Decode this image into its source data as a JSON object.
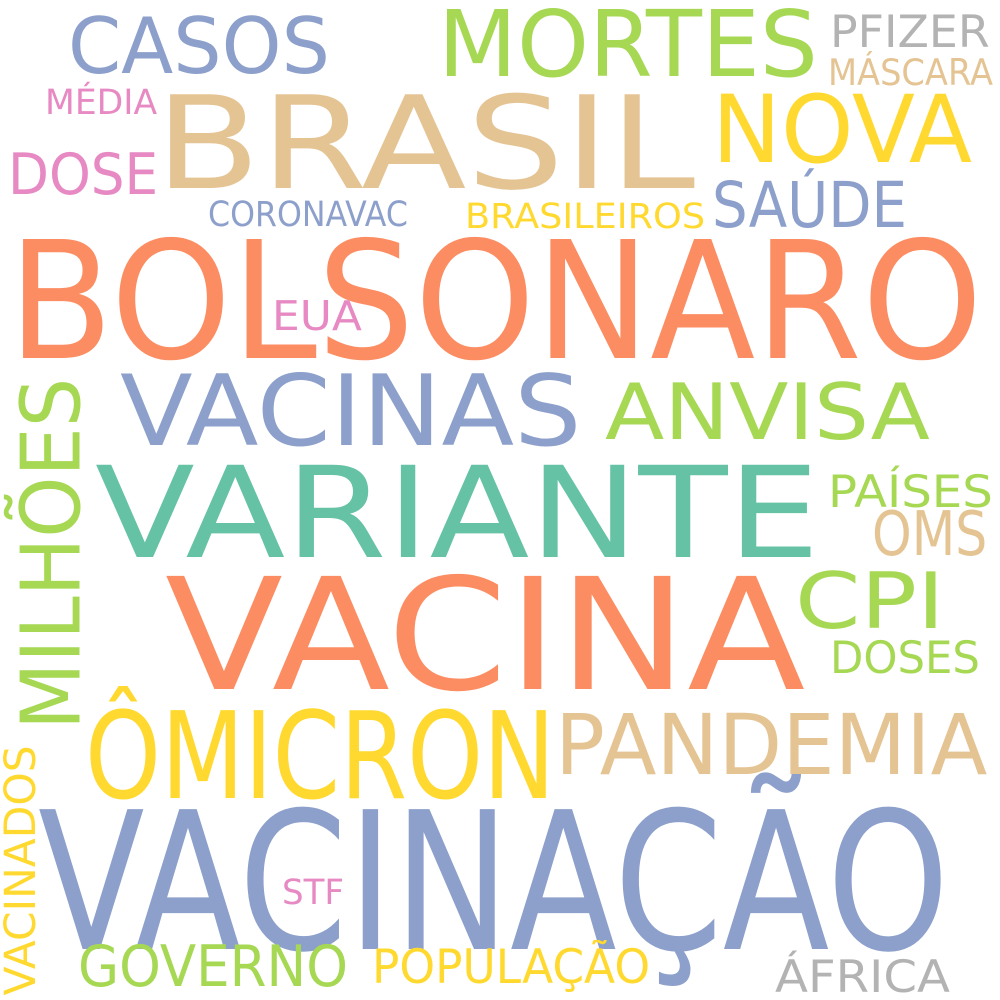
{
  "cloud": {
    "words": [
      {
        "text": "BOLSONARO",
        "color": "#fc8d62"
      },
      {
        "text": "VACINAÇÃO",
        "color": "#8da0cb"
      },
      {
        "text": "VACINA",
        "color": "#fc8d62"
      },
      {
        "text": "VARIANTE",
        "color": "#66c2a5"
      },
      {
        "text": "BRASIL",
        "color": "#e5c494"
      },
      {
        "text": "VACINAS",
        "color": "#8da0cb"
      },
      {
        "text": "MORTES",
        "color": "#a6d854"
      },
      {
        "text": "ÔMICRON",
        "color": "#ffd92f"
      },
      {
        "text": "PANDEMIA",
        "color": "#e5c494"
      },
      {
        "text": "NOVA",
        "color": "#ffd92f"
      },
      {
        "text": "CASOS",
        "color": "#8da0cb"
      },
      {
        "text": "MILHÕES",
        "color": "#a6d854"
      },
      {
        "text": "ANVISA",
        "color": "#a6d854"
      },
      {
        "text": "CPI",
        "color": "#a6d854"
      },
      {
        "text": "GOVERNO",
        "color": "#a6d854"
      },
      {
        "text": "DOSE",
        "color": "#e78ac3"
      },
      {
        "text": "SAÚDE",
        "color": "#8da0cb"
      },
      {
        "text": "OMS",
        "color": "#e5c494"
      },
      {
        "text": "ÁFRICA",
        "color": "#b3b3b3"
      },
      {
        "text": "POPULAÇÃO",
        "color": "#ffd92f"
      },
      {
        "text": "VACINADOS",
        "color": "#ffd92f"
      },
      {
        "text": "DOSES",
        "color": "#a6d854"
      },
      {
        "text": "PAÍSES",
        "color": "#a6d854"
      },
      {
        "text": "EUA",
        "color": "#e78ac3"
      },
      {
        "text": "PFIZER",
        "color": "#b3b3b3"
      },
      {
        "text": "CORONAVAC",
        "color": "#8da0cb"
      },
      {
        "text": "BRASILEIROS",
        "color": "#ffd92f"
      },
      {
        "text": "MÉDIA",
        "color": "#e78ac3"
      },
      {
        "text": "MÁSCARA",
        "color": "#e5c494"
      },
      {
        "text": "STF",
        "color": "#e78ac3"
      }
    ]
  }
}
